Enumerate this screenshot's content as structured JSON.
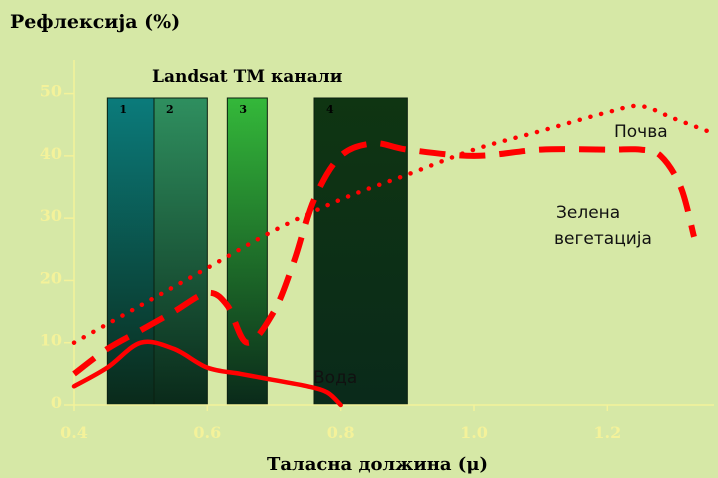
{
  "chart_data": {
    "type": "line",
    "title": "Landsat TM канали",
    "ylabel": "Рефлексија (%)",
    "xlabel": "Таласна должина (μ)",
    "xlim": [
      0.4,
      1.36
    ],
    "ylim": [
      0,
      57
    ],
    "x_ticks": [
      0.4,
      0.6,
      0.8,
      1.0,
      1.2
    ],
    "x_tick_labels": [
      "0.4",
      "0.6",
      "0.8",
      "1.0",
      "1.2"
    ],
    "y_ticks": [
      0,
      10,
      20,
      30,
      40,
      50
    ],
    "y_tick_labels": [
      "0",
      "10",
      "20",
      "30",
      "40",
      "50"
    ],
    "grid": false,
    "bands": [
      {
        "label": "1",
        "x_start": 0.45,
        "x_end": 0.52,
        "color": "#0b7b7b"
      },
      {
        "label": "2",
        "x_start": 0.52,
        "x_end": 0.6,
        "color": "#2f8f5f"
      },
      {
        "label": "3",
        "x_start": 0.63,
        "x_end": 0.69,
        "color": "#34b83a"
      },
      {
        "label": "4",
        "x_start": 0.76,
        "x_end": 0.9,
        "color": "#0f3512"
      }
    ],
    "series": [
      {
        "name": "Почва",
        "style": "dotted",
        "color": "#ff0000",
        "x": [
          0.4,
          0.5,
          0.6,
          0.7,
          0.8,
          0.9,
          1.0,
          1.1,
          1.2,
          1.25,
          1.3,
          1.35
        ],
        "y": [
          10,
          16,
          22,
          28,
          33,
          37,
          41,
          44,
          47,
          48,
          46,
          44
        ]
      },
      {
        "name": "Зелена вегетација",
        "style": "dashed",
        "color": "#ff0000",
        "x": [
          0.4,
          0.45,
          0.5,
          0.55,
          0.6,
          0.63,
          0.66,
          0.7,
          0.73,
          0.76,
          0.8,
          0.85,
          0.9,
          1.0,
          1.1,
          1.2,
          1.25,
          1.28,
          1.31,
          1.33
        ],
        "y": [
          5,
          9,
          12,
          15,
          18,
          16,
          10,
          15,
          23,
          33,
          40,
          42,
          41,
          40,
          41,
          41,
          41,
          40,
          35,
          27
        ]
      },
      {
        "name": "Вода",
        "style": "solid",
        "color": "#ff0000",
        "x": [
          0.4,
          0.45,
          0.5,
          0.55,
          0.6,
          0.65,
          0.7,
          0.75,
          0.78,
          0.8
        ],
        "y": [
          3,
          6,
          10,
          9,
          6,
          5,
          4,
          3,
          2,
          0
        ]
      }
    ]
  }
}
